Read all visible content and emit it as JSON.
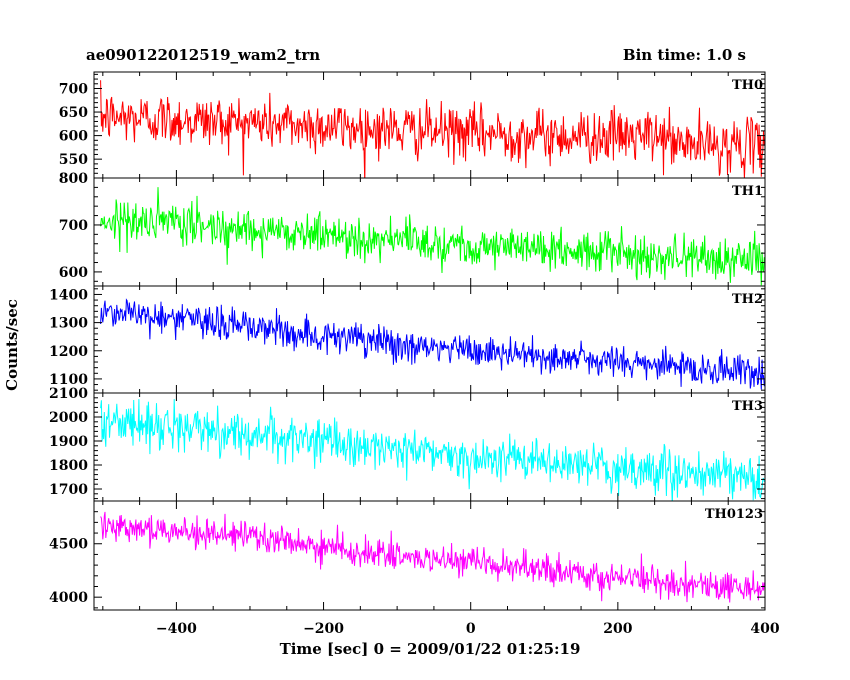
{
  "title_left": "ae090122012519_wam2_trn",
  "title_right": "Bin time: 1.0 s",
  "xlabel": "Time [sec] 0 = 2009/01/22 01:25:19",
  "ylabel": "Counts/sec",
  "colors": {
    "frame": "#000000"
  },
  "chart_data": [
    {
      "type": "line",
      "name": "TH0",
      "color": "#ff0000",
      "xlim": [
        -512,
        400
      ],
      "ylim": [
        510,
        735
      ],
      "yticks": [
        550,
        600,
        650,
        700
      ],
      "x_range": [
        -503,
        399
      ],
      "trend": [
        [
          -503,
          640
        ],
        [
          -300,
          628
        ],
        [
          -100,
          612
        ],
        [
          100,
          600
        ],
        [
          260,
          598
        ],
        [
          280,
          582
        ],
        [
          399,
          578
        ]
      ],
      "noise": 28
    },
    {
      "type": "line",
      "name": "TH1",
      "color": "#00ff00",
      "xlim": [
        -512,
        400
      ],
      "ylim": [
        570,
        800
      ],
      "yticks": [
        600,
        700,
        800
      ],
      "x_range": [
        -503,
        399
      ],
      "trend": [
        [
          -503,
          712
        ],
        [
          -300,
          692
        ],
        [
          -100,
          668
        ],
        [
          100,
          648
        ],
        [
          300,
          632
        ],
        [
          399,
          622
        ]
      ],
      "noise": 22
    },
    {
      "type": "line",
      "name": "TH2",
      "color": "#0000ff",
      "xlim": [
        -512,
        400
      ],
      "ylim": [
        1050,
        1430
      ],
      "yticks": [
        1100,
        1200,
        1300,
        1400
      ],
      "x_range": [
        -503,
        399
      ],
      "trend": [
        [
          -503,
          1345
        ],
        [
          -300,
          1285
        ],
        [
          -100,
          1220
        ],
        [
          100,
          1180
        ],
        [
          300,
          1140
        ],
        [
          399,
          1120
        ]
      ],
      "noise": 30
    },
    {
      "type": "line",
      "name": "TH3",
      "color": "#00ffff",
      "xlim": [
        -512,
        400
      ],
      "ylim": [
        1650,
        2100
      ],
      "yticks": [
        1700,
        1800,
        1900,
        2000,
        2100
      ],
      "x_range": [
        -503,
        399
      ],
      "trend": [
        [
          -503,
          1985
        ],
        [
          -300,
          1930
        ],
        [
          -100,
          1865
        ],
        [
          100,
          1810
        ],
        [
          300,
          1760
        ],
        [
          399,
          1740
        ]
      ],
      "noise": 45
    },
    {
      "type": "line",
      "name": "TH0123",
      "color": "#ff00ff",
      "xlim": [
        -512,
        400
      ],
      "ylim": [
        3880,
        4900
      ],
      "yticks": [
        4000,
        4500
      ],
      "x_range": [
        -503,
        399
      ],
      "trend": [
        [
          -503,
          4690
        ],
        [
          -300,
          4560
        ],
        [
          -100,
          4380
        ],
        [
          100,
          4250
        ],
        [
          300,
          4120
        ],
        [
          399,
          4080
        ]
      ],
      "noise": 70
    }
  ],
  "xticks": [
    -400,
    -200,
    0,
    200,
    400
  ]
}
